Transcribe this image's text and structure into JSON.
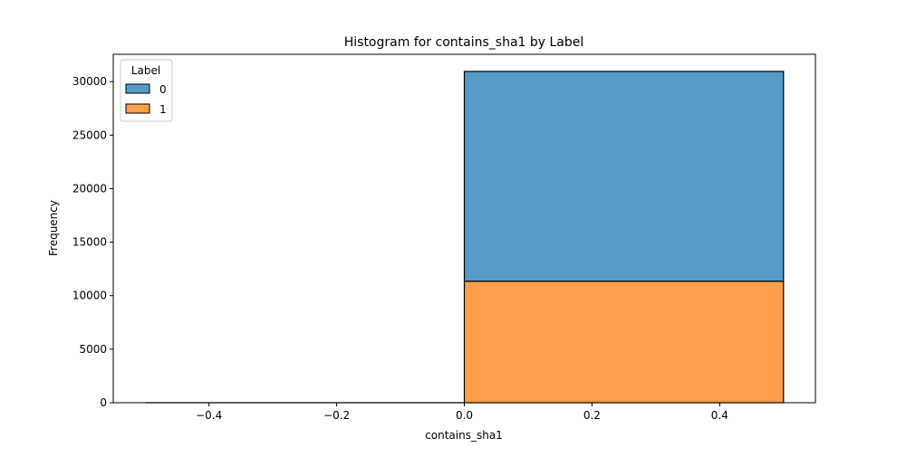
{
  "chart_data": {
    "type": "bar",
    "title": "Histogram for contains_sha1 by Label",
    "xlabel": "contains_sha1",
    "ylabel": "Frequency",
    "xlim": [
      -0.55,
      0.55
    ],
    "ylim": [
      0,
      32550
    ],
    "x_ticks": [
      -0.4,
      -0.2,
      0.0,
      0.2,
      0.4
    ],
    "x_tick_labels": [
      "−0.4",
      "−0.2",
      "0.0",
      "0.2",
      "0.4"
    ],
    "y_ticks": [
      0,
      5000,
      10000,
      15000,
      20000,
      25000,
      30000
    ],
    "y_tick_labels": [
      "0",
      "5000",
      "10000",
      "15000",
      "20000",
      "25000",
      "30000"
    ],
    "stacked": true,
    "bins": [
      {
        "x0": -0.5,
        "x1": 0.0
      },
      {
        "x0": 0.0,
        "x1": 0.5
      }
    ],
    "series": [
      {
        "name": "1",
        "color": "#ff9f4b",
        "values": [
          0,
          11350
        ]
      },
      {
        "name": "0",
        "color": "#569bc8",
        "values": [
          0,
          19600
        ]
      }
    ],
    "legend": {
      "title": "Label",
      "placement": "top-left",
      "entries": [
        {
          "label": "0",
          "color": "#569bc8"
        },
        {
          "label": "1",
          "color": "#ff9f4b"
        }
      ]
    },
    "grid": false
  }
}
